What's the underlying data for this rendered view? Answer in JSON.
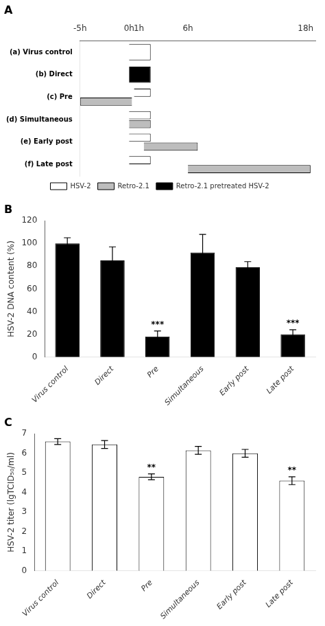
{
  "chart_data": [
    {
      "type": "bar",
      "title": "A",
      "orientation": "horizontal",
      "categories": [
        "(a) Virus control",
        "(b) Direct",
        "(c) Pre",
        "(d) Simultaneous",
        "(e) Early post",
        "(f) Late post"
      ],
      "series": [
        {
          "name": "HSV-2",
          "color": "#ffffff",
          "values": [
            [
              0,
              2.2
            ],
            null,
            [
              0.5,
              2.2
            ],
            [
              0,
              2.2
            ],
            [
              0,
              2.2
            ],
            [
              0,
              2.2
            ]
          ]
        },
        {
          "name": "Retro-2.1",
          "color": "#bdbdbd",
          "values": [
            null,
            null,
            [
              -5,
              0.3
            ],
            [
              0,
              2.2
            ],
            [
              1.5,
              7.0
            ],
            [
              6,
              18.5
            ]
          ]
        },
        {
          "name": "Retro-2.1 pretreated HSV-2",
          "color": "#000000",
          "values": [
            null,
            [
              0,
              2.2
            ],
            null,
            null,
            null,
            null
          ]
        }
      ],
      "xlim": [
        -5,
        19
      ],
      "xticks": [
        {
          "value": -5,
          "label": "-5h"
        },
        {
          "value": 0,
          "label": "0h"
        },
        {
          "value": 1,
          "label": "1h"
        },
        {
          "value": 6,
          "label": "6h"
        },
        {
          "value": 18,
          "label": "18h"
        }
      ],
      "grid": false,
      "legend": "bottom"
    },
    {
      "type": "bar",
      "title": "B",
      "categories": [
        "Virus control",
        "Direct",
        "Pre",
        "Simultaneous",
        "Early post",
        "Late post"
      ],
      "values": [
        100,
        85,
        18,
        92,
        79,
        20
      ],
      "errors": [
        5,
        12,
        5,
        16,
        5,
        4
      ],
      "sig_labels": [
        null,
        null,
        "***",
        null,
        null,
        "***"
      ],
      "color": "#000000",
      "ylabel": "HSV-2 DNA content (%)",
      "ylim": [
        0,
        120
      ],
      "yticks": [
        0,
        20,
        40,
        60,
        80,
        100,
        120
      ],
      "grid": false
    },
    {
      "type": "bar",
      "title": "C",
      "categories": [
        "Virus control",
        "Direct",
        "Pre",
        "Simultaneous",
        "Early post",
        "Late post"
      ],
      "values": [
        6.6,
        6.45,
        4.8,
        6.15,
        6.0,
        4.6
      ],
      "errors": [
        0.15,
        0.2,
        0.15,
        0.2,
        0.2,
        0.2
      ],
      "sig_labels": [
        null,
        null,
        "**",
        null,
        null,
        "**"
      ],
      "color": "#ffffff",
      "ylabel": "HSV-2 titer (lgTCID₅₀/ml)",
      "ylim": [
        0,
        7
      ],
      "yticks": [
        0,
        1,
        2,
        3,
        4,
        5,
        6,
        7
      ],
      "grid": false
    }
  ]
}
